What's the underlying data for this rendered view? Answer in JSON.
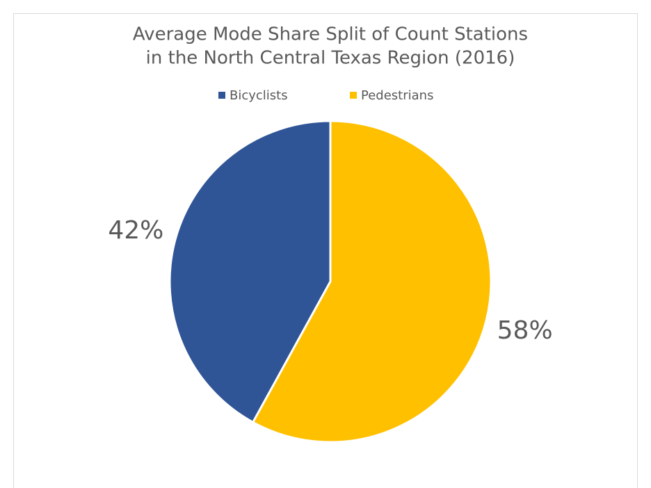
{
  "chart_data": {
    "type": "pie",
    "title": [
      "Average Mode Share Split of Count Stations",
      "in the North Central Texas Region (2016)"
    ],
    "series": [
      {
        "name": "Bicyclists",
        "color": "#2f5597",
        "values": [
          42
        ],
        "value_labels": [
          "42%"
        ]
      },
      {
        "name": "Pedestrians",
        "color": "#ffc000",
        "values": [
          58
        ],
        "value_labels": [
          "58%"
        ]
      }
    ]
  }
}
